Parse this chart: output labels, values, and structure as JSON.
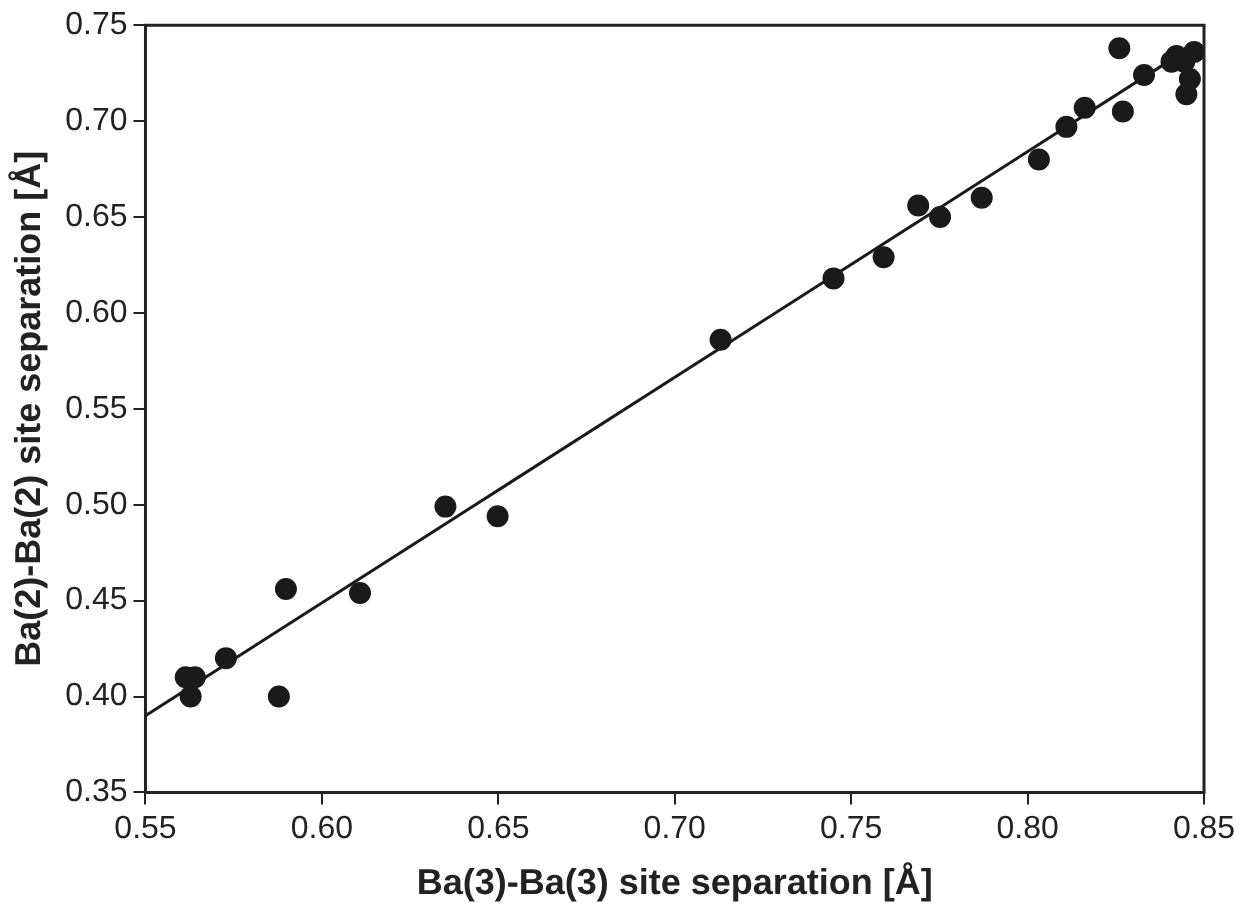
{
  "chart_data": {
    "type": "scatter",
    "xlabel": "Ba(3)-Ba(3) site separation [Å]",
    "ylabel": "Ba(2)-Ba(2) site separation [Å]",
    "xlim": [
      0.55,
      0.85
    ],
    "xticks": [
      0.55,
      {
        "value": 0.6,
        "label": "0.60"
      },
      0.65,
      {
        "value": 0.7,
        "label": "0.70"
      },
      0.75,
      {
        "value": 0.8,
        "label": "0.80"
      },
      0.85
    ],
    "ylim": [
      0.35,
      0.75
    ],
    "yticks": [
      0.35,
      {
        "value": 0.4,
        "label": "0.40"
      },
      0.45,
      {
        "value": 0.5,
        "label": "0.50"
      },
      0.55,
      {
        "value": 0.6,
        "label": "0.60"
      },
      0.65,
      {
        "value": 0.7,
        "label": "0.70"
      },
      0.75
    ],
    "grid": false,
    "legend": false,
    "marker": "circle",
    "series": [
      {
        "color": "#1a1a1a",
        "x": [
          0.5614,
          0.564,
          0.5628,
          0.5728,
          0.5878,
          0.5898,
          0.6108,
          0.635,
          0.6498,
          0.713,
          0.745,
          0.7592,
          0.769,
          0.7752,
          0.787,
          0.8032,
          0.811,
          0.8162,
          0.826,
          0.827,
          0.833,
          0.8408,
          0.8422,
          0.8444,
          0.8472,
          0.846,
          0.845
        ],
        "values": [
          0.41,
          0.41,
          0.4,
          0.42,
          0.4,
          0.456,
          0.454,
          0.499,
          0.494,
          0.586,
          0.618,
          0.629,
          0.656,
          0.65,
          0.66,
          0.68,
          0.697,
          0.707,
          0.738,
          0.705,
          0.724,
          0.731,
          0.734,
          0.731,
          0.736,
          0.722,
          0.714
        ]
      },
      {
        "type": "line",
        "color": "#1a1a1a",
        "x": [
          0.55,
          0.845
        ],
        "values": [
          0.39,
          0.737
        ],
        "marker": "none"
      }
    ]
  }
}
